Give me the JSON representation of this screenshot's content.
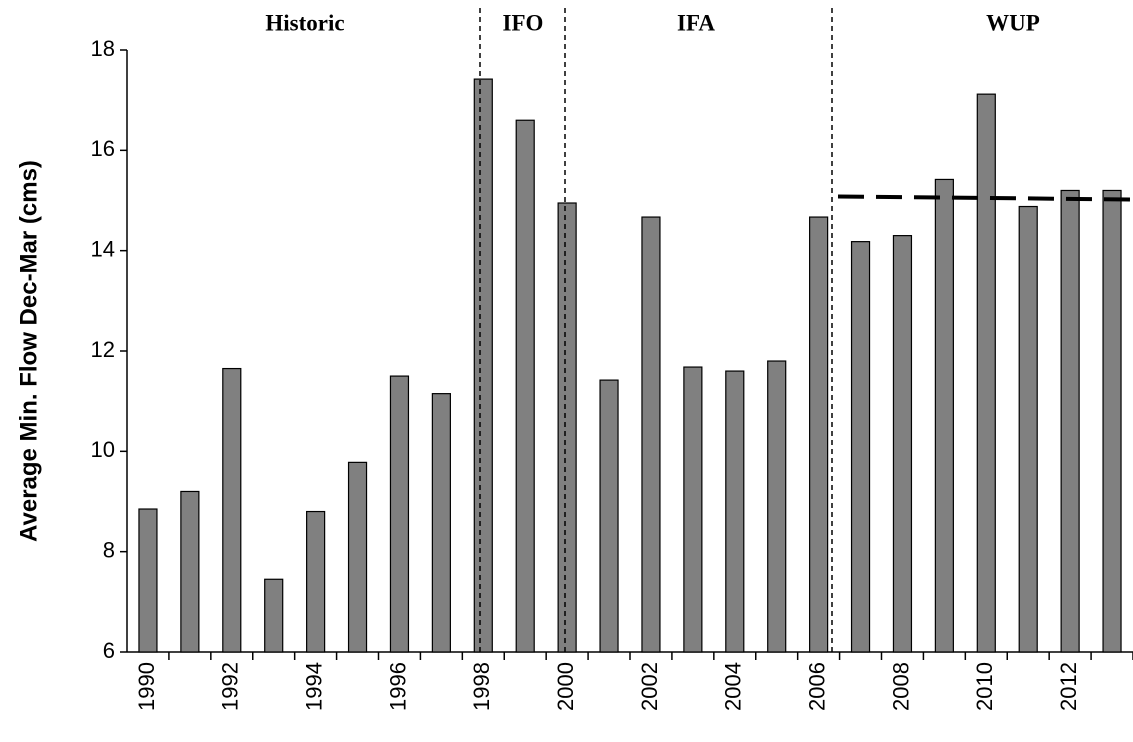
{
  "chart_data": {
    "type": "bar",
    "y_label": "Average Min. Flow Dec-Mar (cms)",
    "categories": [
      "1990",
      null,
      "1992",
      null,
      "1994",
      null,
      "1996",
      null,
      "1998",
      null,
      "2000",
      null,
      "2002",
      null,
      "2004",
      null,
      "2006",
      null,
      "2008",
      null,
      "2010",
      null,
      "2012",
      null
    ],
    "values": [
      8.85,
      9.2,
      11.65,
      7.45,
      8.8,
      9.78,
      11.5,
      11.15,
      17.42,
      16.6,
      14.95,
      11.42,
      14.67,
      11.68,
      11.6,
      11.8,
      14.67,
      14.18,
      14.3,
      15.42,
      17.12,
      14.88,
      15.2,
      15.2
    ],
    "color": "#808080",
    "ylim": [
      6,
      18
    ],
    "yticks": [
      6,
      8,
      10,
      12,
      14,
      16,
      18
    ],
    "periods": [
      "Historic",
      "IFO",
      "IFA",
      "WUP"
    ],
    "reference_line": [
      15.08,
      15.02
    ]
  }
}
